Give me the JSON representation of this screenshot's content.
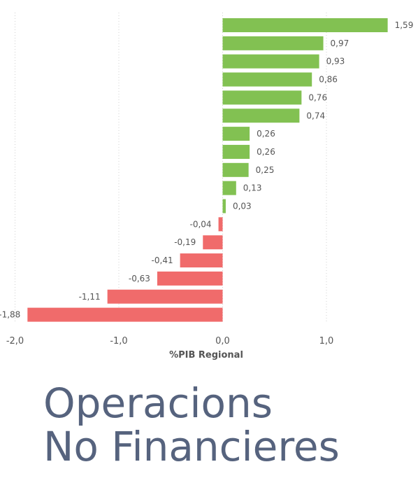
{
  "chart_data": {
    "type": "bar",
    "orientation": "horizontal",
    "values": [
      1.59,
      0.97,
      0.93,
      0.86,
      0.76,
      0.74,
      0.26,
      0.26,
      0.25,
      0.13,
      0.03,
      -0.04,
      -0.19,
      -0.41,
      -0.63,
      -1.11,
      -1.88
    ],
    "value_labels": [
      "1,59",
      "0,97",
      "0,93",
      "0,86",
      "0,76",
      "0,74",
      "0,26",
      "0,26",
      "0,25",
      "0,13",
      "0,03",
      "-0,04",
      "-0,19",
      "-0,41",
      "-0,63",
      "-1,11",
      "-1,88"
    ],
    "xlabel": "%PIB Regional",
    "xlim": [
      -2.0,
      1.59
    ],
    "x_ticks": [
      -2.0,
      -1.0,
      0.0,
      1.0
    ],
    "x_tick_labels": [
      "-2,0",
      "-1,0",
      "0,0",
      "1,0"
    ],
    "grid": "vertical dotted",
    "colors": {
      "positive": "#82c152",
      "negative": "#f06b6b",
      "grid": "#d0d0d0",
      "text": "#555555"
    }
  },
  "caption": {
    "line1": "Operacions",
    "line2": "No Financieres"
  }
}
